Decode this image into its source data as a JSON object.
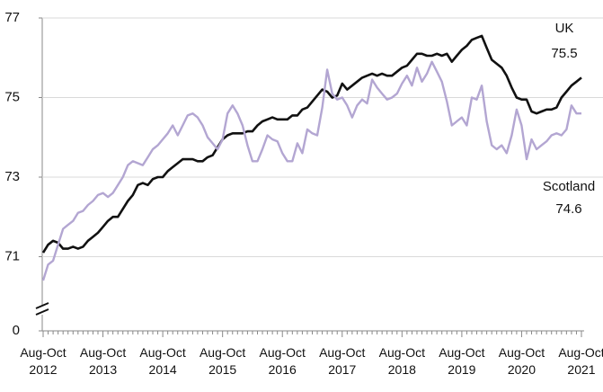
{
  "chart_data": {
    "type": "line",
    "categories": [
      "Aug-Oct 2012",
      null,
      null,
      null,
      null,
      null,
      null,
      null,
      null,
      null,
      null,
      null,
      "Aug-Oct 2013",
      null,
      null,
      null,
      null,
      null,
      null,
      null,
      null,
      null,
      null,
      null,
      "Aug-Oct 2014",
      null,
      null,
      null,
      null,
      null,
      null,
      null,
      null,
      null,
      null,
      null,
      "Aug-Oct 2015",
      null,
      null,
      null,
      null,
      null,
      null,
      null,
      null,
      null,
      null,
      null,
      "Aug-Oct 2016",
      null,
      null,
      null,
      null,
      null,
      null,
      null,
      null,
      null,
      null,
      null,
      "Aug-Oct 2017",
      null,
      null,
      null,
      null,
      null,
      null,
      null,
      null,
      null,
      null,
      null,
      "Aug-Oct 2018",
      null,
      null,
      null,
      null,
      null,
      null,
      null,
      null,
      null,
      null,
      null,
      "Aug-Oct 2019",
      null,
      null,
      null,
      null,
      null,
      null,
      null,
      null,
      null,
      null,
      null,
      "Aug-Oct 2020",
      null,
      null,
      null,
      null,
      null,
      null,
      null,
      null,
      null,
      null,
      null,
      "Aug-Oct 2021"
    ],
    "series": [
      {
        "name": "UK",
        "color": "#111111",
        "values": [
          71.1,
          71.3,
          71.4,
          71.35,
          71.2,
          71.2,
          71.25,
          71.2,
          71.25,
          71.4,
          71.5,
          71.6,
          71.75,
          71.9,
          72.0,
          72.0,
          72.2,
          72.4,
          72.55,
          72.8,
          72.85,
          72.8,
          72.95,
          73.0,
          73.0,
          73.15,
          73.25,
          73.35,
          73.45,
          73.45,
          73.45,
          73.4,
          73.4,
          73.5,
          73.55,
          73.75,
          73.95,
          74.05,
          74.1,
          74.1,
          74.1,
          74.15,
          74.15,
          74.3,
          74.4,
          74.45,
          74.5,
          74.45,
          74.45,
          74.45,
          74.55,
          74.55,
          74.7,
          74.75,
          74.9,
          75.05,
          75.2,
          75.15,
          75.0,
          75.05,
          75.35,
          75.2,
          75.3,
          75.4,
          75.5,
          75.55,
          75.6,
          75.55,
          75.6,
          75.55,
          75.55,
          75.65,
          75.75,
          75.8,
          75.95,
          76.1,
          76.1,
          76.05,
          76.05,
          76.1,
          76.05,
          76.1,
          75.9,
          76.05,
          76.2,
          76.3,
          76.45,
          76.5,
          76.55,
          76.25,
          75.95,
          75.85,
          75.75,
          75.55,
          75.25,
          75.0,
          74.95,
          74.95,
          74.65,
          74.6,
          74.65,
          74.7,
          74.7,
          74.75,
          75.0,
          75.15,
          75.3,
          75.4,
          75.5
        ]
      },
      {
        "name": "Scotland",
        "color": "#b3a6d2",
        "values": [
          70.4,
          70.8,
          70.9,
          71.3,
          71.7,
          71.8,
          71.9,
          72.1,
          72.15,
          72.3,
          72.4,
          72.55,
          72.6,
          72.5,
          72.6,
          72.8,
          73.0,
          73.3,
          73.4,
          73.35,
          73.3,
          73.5,
          73.7,
          73.8,
          73.95,
          74.1,
          74.3,
          74.05,
          74.3,
          74.55,
          74.6,
          74.5,
          74.3,
          74.0,
          73.85,
          73.7,
          73.95,
          74.6,
          74.8,
          74.6,
          74.3,
          73.8,
          73.4,
          73.4,
          73.7,
          74.05,
          73.95,
          73.9,
          73.6,
          73.4,
          73.4,
          73.85,
          73.6,
          74.2,
          74.1,
          74.05,
          74.75,
          75.7,
          75.1,
          74.95,
          75.0,
          74.8,
          74.5,
          74.8,
          74.95,
          74.85,
          75.45,
          75.25,
          75.1,
          74.95,
          75.0,
          75.1,
          75.35,
          75.55,
          75.3,
          75.75,
          75.4,
          75.6,
          75.9,
          75.65,
          75.4,
          74.9,
          74.3,
          74.4,
          74.5,
          74.3,
          75.0,
          74.95,
          75.3,
          74.4,
          73.8,
          73.7,
          73.8,
          73.6,
          74.05,
          74.7,
          74.3,
          73.45,
          73.95,
          73.7,
          73.8,
          73.9,
          74.05,
          74.1,
          74.05,
          74.2,
          74.8,
          74.6,
          74.6
        ]
      }
    ],
    "ylim": [
      0,
      77
    ],
    "axis_break": [
      0,
      69.7
    ],
    "yticks": [
      77,
      75,
      73,
      71,
      0
    ],
    "grid": true
  }
}
